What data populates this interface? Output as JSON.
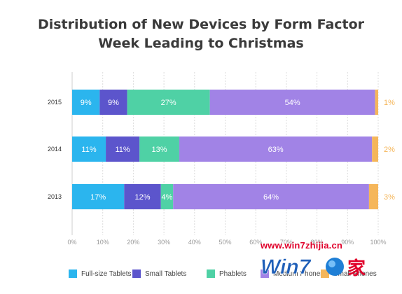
{
  "title": {
    "line1": "Distribution of New Devices by Form Factor",
    "line2": "Week Leading to Christmas"
  },
  "chart_data": {
    "type": "bar",
    "orientation": "horizontal",
    "stacked": true,
    "title": "Distribution of New Devices by Form Factor Week Leading to Christmas",
    "categories": [
      "2015",
      "2014",
      "2013"
    ],
    "series": [
      {
        "name": "Full-size Tablets",
        "color": "#2bb5ee",
        "values": [
          9,
          11,
          17
        ],
        "labels": [
          "9%",
          "11%",
          "17%"
        ]
      },
      {
        "name": "Small Tablets",
        "color": "#5c55cc",
        "values": [
          9,
          11,
          12
        ],
        "labels": [
          "9%",
          "11%",
          "12%"
        ]
      },
      {
        "name": "Phablets",
        "color": "#4fd1a5",
        "values": [
          27,
          13,
          4
        ],
        "labels": [
          "27%",
          "13%",
          "4%"
        ]
      },
      {
        "name": "Medium Phones",
        "color": "#a183e6",
        "values": [
          54,
          63,
          64
        ],
        "labels": [
          "54%",
          "63%",
          "64%"
        ]
      },
      {
        "name": "Small Phones",
        "color": "#f5b65a",
        "values": [
          1,
          2,
          3
        ],
        "labels": [
          "1%",
          "2%",
          "3%"
        ]
      }
    ],
    "x_ticks": [
      "0%",
      "10%",
      "20%",
      "30%",
      "40%",
      "50%",
      "60%",
      "70%",
      "80%",
      "90%",
      "100%"
    ],
    "xlim": [
      0,
      100
    ],
    "grid": true,
    "legend_position": "bottom"
  },
  "watermark": {
    "url": "www.win7zhijia.cn",
    "logo_text": "Win7",
    "logo_char": "家"
  }
}
